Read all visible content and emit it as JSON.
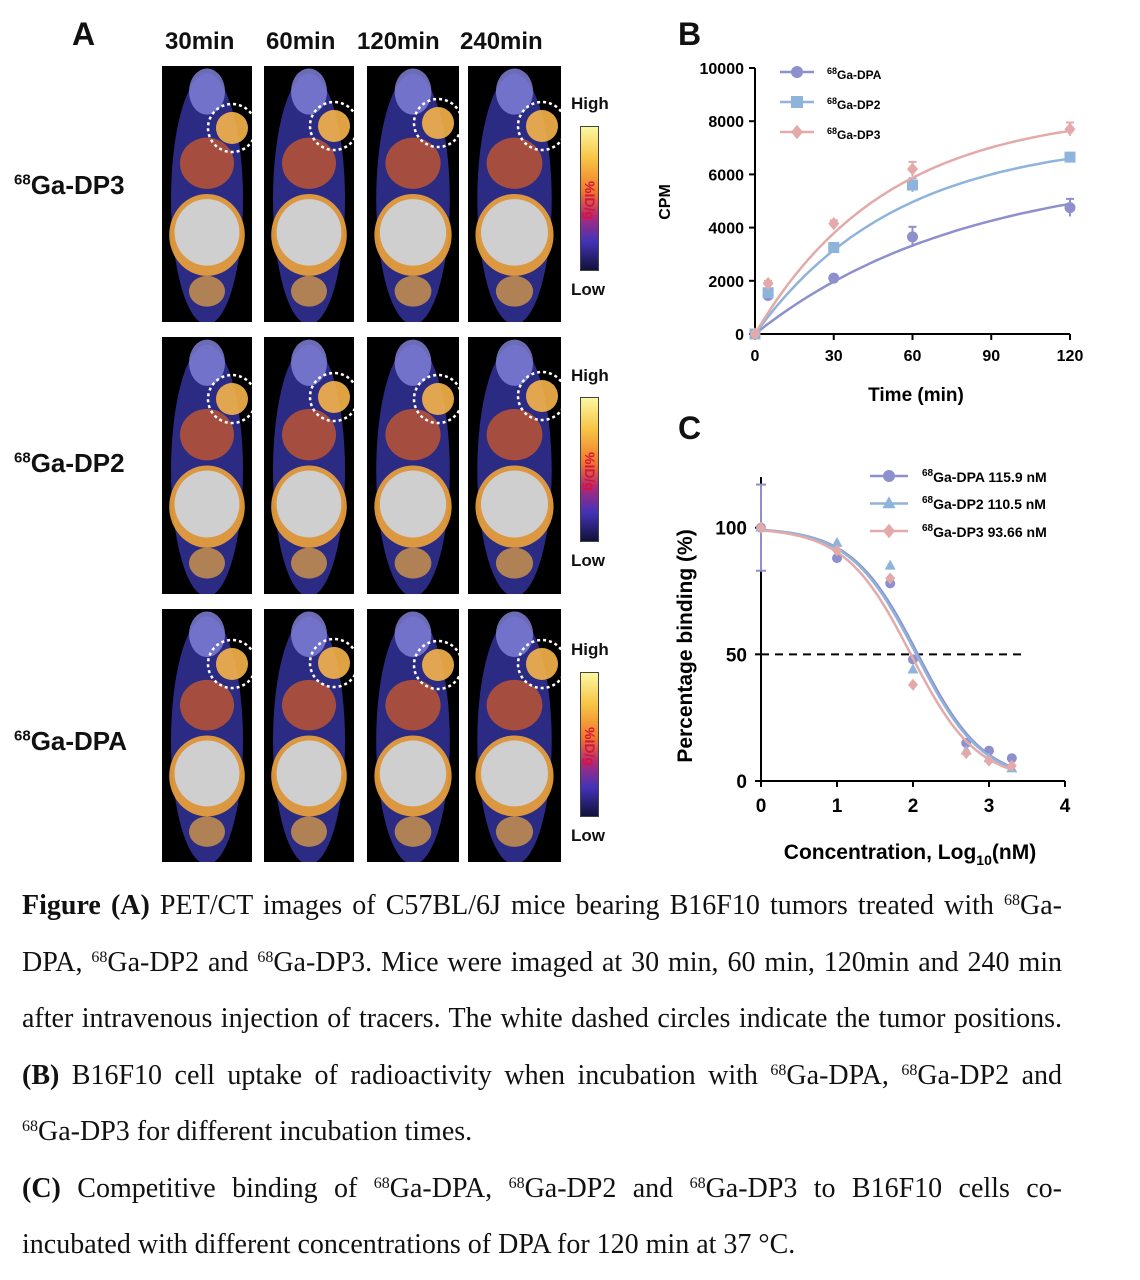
{
  "panel_a": {
    "letter": "A",
    "times": [
      "30min",
      "60min",
      "120min",
      "240min"
    ],
    "rows": [
      {
        "sup": "68",
        "name": "Ga-DP3"
      },
      {
        "sup": "68",
        "name": "Ga-DP2"
      },
      {
        "sup": "68",
        "name": "Ga-DPA"
      }
    ],
    "colorbar": {
      "high": "High",
      "low": "Low",
      "unit": "%ID/g"
    }
  },
  "panel_b": {
    "letter": "B",
    "legend": [
      {
        "sup": "68",
        "name": "Ga-DPA"
      },
      {
        "sup": "68",
        "name": "Ga-DP2"
      },
      {
        "sup": "68",
        "name": "Ga-DP3"
      }
    ],
    "xlabel": "Time (min)",
    "ylabel": "CPM"
  },
  "panel_c": {
    "letter": "C",
    "legend": [
      {
        "sup": "68",
        "name": "Ga-DPA 115.9 nM"
      },
      {
        "sup": "68",
        "name": "Ga-DP2 110.5 nM"
      },
      {
        "sup": "68",
        "name": "Ga-DP3 93.66 nM"
      }
    ],
    "xlabel": "Concentration, Log",
    "xlabel_sub": "10",
    "xlabel_end": "(nM)",
    "ylabel": "Percentage binding (%)"
  },
  "chart_data": [
    {
      "type": "scatter",
      "xlabel": "Time (min)",
      "ylabel": "CPM",
      "xlim": [
        0,
        120
      ],
      "ylim": [
        0,
        10000
      ],
      "x_ticks": [
        0,
        30,
        60,
        90,
        120
      ],
      "y_ticks": [
        0,
        2000,
        4000,
        6000,
        8000,
        10000
      ],
      "legend_position": "top-left",
      "series": [
        {
          "name": "68Ga-DPA",
          "color": "#8d90cc",
          "marker": "circle",
          "x": [
            0,
            5,
            30,
            60,
            120
          ],
          "y": [
            0,
            1450,
            2100,
            3650,
            4750
          ],
          "err": [
            0,
            120,
            100,
            380,
            330
          ],
          "fit_plateau": 6300,
          "fit_k": 0.0125
        },
        {
          "name": "68Ga-DP2",
          "color": "#8fb4dc",
          "marker": "square",
          "x": [
            0,
            5,
            30,
            60,
            120
          ],
          "y": [
            0,
            1550,
            3250,
            5600,
            6650
          ],
          "err": [
            0,
            100,
            170,
            260,
            110
          ],
          "fit_plateau": 7400,
          "fit_k": 0.0185
        },
        {
          "name": "68Ga-DP3",
          "color": "#e3aaa9",
          "marker": "diamond",
          "x": [
            0,
            5,
            30,
            60,
            120
          ],
          "y": [
            0,
            1900,
            4150,
            6200,
            7700
          ],
          "err": [
            0,
            100,
            120,
            270,
            250
          ],
          "fit_plateau": 8400,
          "fit_k": 0.02
        }
      ]
    },
    {
      "type": "scatter",
      "xlabel": "Concentration, Log10(nM)",
      "ylabel": "Percentage binding (%)",
      "xlim": [
        0,
        4
      ],
      "ylim": [
        0,
        120
      ],
      "x_ticks": [
        0,
        1,
        2,
        3,
        4
      ],
      "y_ticks": [
        0,
        50,
        100
      ],
      "reference_line": {
        "y": 50,
        "x_end": 3.5,
        "style": "dashed"
      },
      "legend_position": "top-right",
      "series": [
        {
          "name": "68Ga-DPA 115.9 nM",
          "color": "#8d90cc",
          "marker": "circle",
          "x": [
            0,
            1,
            1.7,
            2,
            2.7,
            3,
            3.3
          ],
          "y": [
            100,
            88,
            78,
            48,
            15,
            12,
            9
          ],
          "err": [
            17,
            0,
            0,
            0,
            0,
            0,
            0
          ],
          "ic50_log": 2.064
        },
        {
          "name": "68Ga-DP2 110.5 nM",
          "color": "#8fb4dc",
          "marker": "triangle",
          "x": [
            0,
            1,
            1.7,
            2,
            2.7,
            3,
            3.3
          ],
          "y": [
            100,
            94,
            85,
            44,
            12,
            9,
            5
          ],
          "err": [
            0,
            0,
            0,
            0,
            0,
            0,
            0
          ],
          "ic50_log": 2.043
        },
        {
          "name": "68Ga-DP3 93.66 nM",
          "color": "#e3aaa9",
          "marker": "diamond",
          "x": [
            0,
            1,
            1.7,
            2,
            2.7,
            3,
            3.3
          ],
          "y": [
            100,
            91,
            80,
            38,
            11,
            8,
            6
          ],
          "err": [
            0,
            0,
            0,
            0,
            0,
            0,
            0
          ],
          "ic50_log": 1.972
        }
      ]
    }
  ],
  "caption": {
    "fig_label": "Figure",
    "a_label": "(A)",
    "a_text_1": " PET/CT images of C57BL/6J mice bearing B16F10 tumors treated with ",
    "sup": "68",
    "dpa": "Ga-DPA, ",
    "dp2_and": "Ga-DP2 and ",
    "dp3_a": "Ga-DP3. Mice were imaged at 30 min, 60 min, 120min and 240 min after intravenous injection of tracers. The white dashed circles indicate the tumor positions. ",
    "b_label": "(B)",
    "b_text_1": " B16F10 cell uptake of radioactivity when incubation with ",
    "dp3_b": "Ga-DP3 for different incubation times. ",
    "c_label": "(C)",
    "c_text_1": " Competitive binding of ",
    "dp3_c": "Ga-DP3 to B16F10 cells co-incubated with different concentrations of DPA for 120 min at 37 °C."
  }
}
